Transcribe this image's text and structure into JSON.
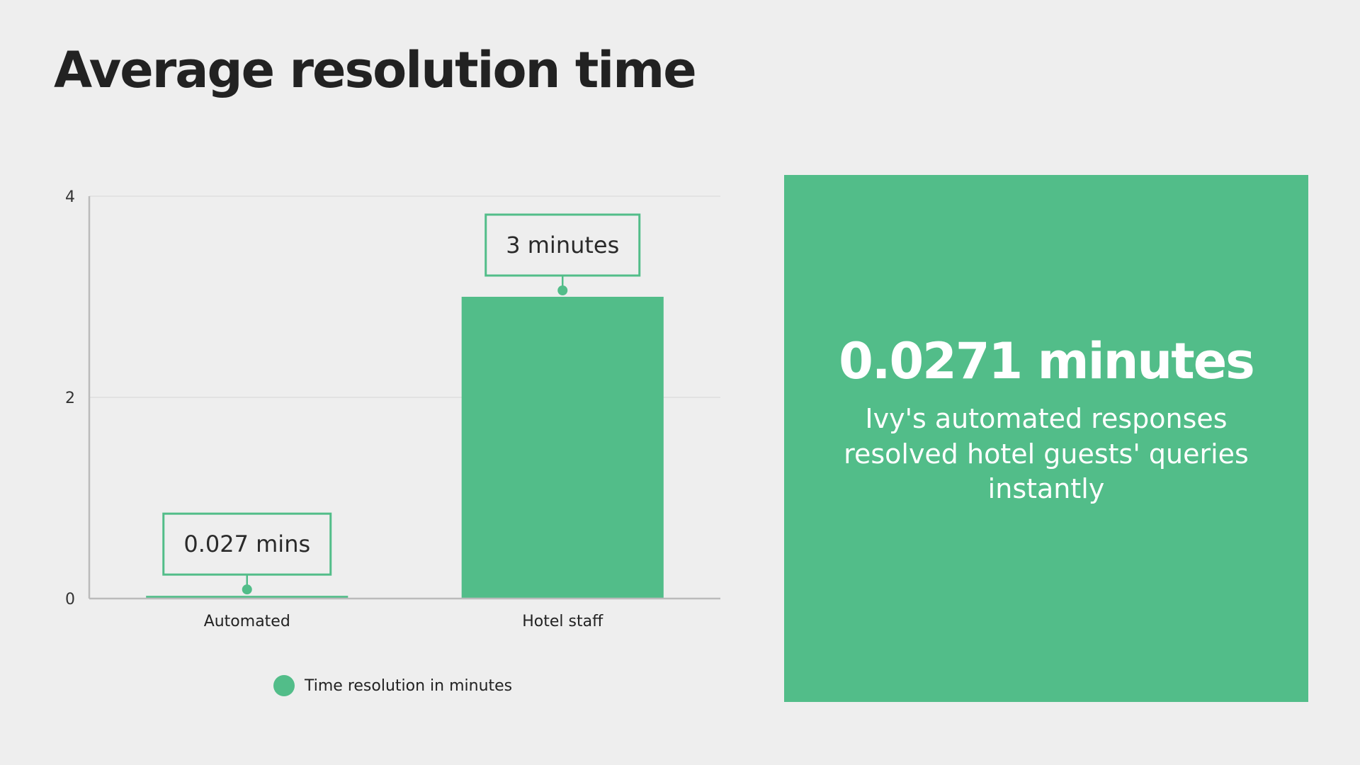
{
  "title": "Average resolution time",
  "colors": {
    "accent": "#52bd89",
    "background": "#eeeeee",
    "axis": "#bbbbbb",
    "grid": "#dddddd"
  },
  "chart_data": {
    "type": "bar",
    "categories": [
      "Automated",
      "Hotel staff"
    ],
    "series": [
      {
        "name": "Time resolution in minutes",
        "values": [
          0.027,
          3
        ]
      }
    ],
    "data_labels": [
      "0.027 mins",
      "3 minutes"
    ],
    "ylim": [
      0,
      4
    ],
    "yticks": [
      0,
      2,
      4
    ],
    "xlabel": "",
    "ylabel": "",
    "grid": true,
    "legend_position": "bottom"
  },
  "stat_card": {
    "value": "0.0271 minutes",
    "caption": "Ivy's automated responses resolved hotel guests' queries instantly"
  }
}
